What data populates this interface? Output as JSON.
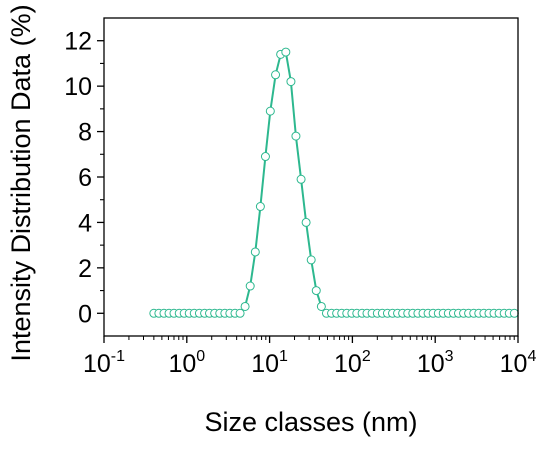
{
  "chart_data": {
    "type": "scatter",
    "title": "",
    "xlabel": "Size classes (nm)",
    "ylabel": "Intensity Distribution Data (%)",
    "x_scale": "log",
    "xlim": [
      0.1,
      10000
    ],
    "ylim": [
      -1,
      13
    ],
    "x_ticks": [
      {
        "base": "10",
        "exp": "-1",
        "value": 0.1
      },
      {
        "base": "10",
        "exp": "0",
        "value": 1
      },
      {
        "base": "10",
        "exp": "1",
        "value": 10
      },
      {
        "base": "10",
        "exp": "2",
        "value": 100
      },
      {
        "base": "10",
        "exp": "3",
        "value": 1000
      },
      {
        "base": "10",
        "exp": "4",
        "value": 10000
      }
    ],
    "y_ticks": [
      "0",
      "2",
      "4",
      "6",
      "8",
      "10",
      "12"
    ],
    "grid": false,
    "legend": "none",
    "series": [
      {
        "marker": "open-circle",
        "line": "solid",
        "color": "#2db88f",
        "points": [
          [
            0.4,
            0.0
          ],
          [
            0.46,
            0.0
          ],
          [
            0.53,
            0.0
          ],
          [
            0.61,
            0.0
          ],
          [
            0.7,
            0.0
          ],
          [
            0.81,
            0.0
          ],
          [
            0.93,
            0.0
          ],
          [
            1.07,
            0.0
          ],
          [
            1.23,
            0.0
          ],
          [
            1.42,
            0.0
          ],
          [
            1.64,
            0.0
          ],
          [
            1.88,
            0.0
          ],
          [
            2.17,
            0.0
          ],
          [
            2.5,
            0.0
          ],
          [
            2.88,
            0.0
          ],
          [
            3.31,
            0.0
          ],
          [
            3.82,
            0.0
          ],
          [
            4.4,
            0.0
          ],
          [
            5.06,
            0.3
          ],
          [
            5.83,
            1.2
          ],
          [
            6.72,
            2.7
          ],
          [
            7.74,
            4.7
          ],
          [
            8.91,
            6.9
          ],
          [
            10.2,
            8.9
          ],
          [
            11.8,
            10.5
          ],
          [
            13.6,
            11.4
          ],
          [
            15.7,
            11.5
          ],
          [
            18.1,
            10.2
          ],
          [
            20.8,
            7.8
          ],
          [
            24.0,
            5.9
          ],
          [
            27.6,
            4.0
          ],
          [
            31.8,
            2.35
          ],
          [
            36.6,
            1.0
          ],
          [
            42.2,
            0.3
          ],
          [
            48.6,
            0.0
          ],
          [
            56.0,
            0.0
          ],
          [
            64.5,
            0.0
          ],
          [
            74.3,
            0.0
          ],
          [
            85.5,
            0.0
          ],
          [
            98.5,
            0.0
          ],
          [
            113,
            0.0
          ],
          [
            131,
            0.0
          ],
          [
            150,
            0.0
          ],
          [
            173,
            0.0
          ],
          [
            200,
            0.0
          ],
          [
            230,
            0.0
          ],
          [
            265,
            0.0
          ],
          [
            305,
            0.0
          ],
          [
            351,
            0.0
          ],
          [
            404,
            0.0
          ],
          [
            466,
            0.0
          ],
          [
            536,
            0.0
          ],
          [
            618,
            0.0
          ],
          [
            712,
            0.0
          ],
          [
            820,
            0.0
          ],
          [
            944,
            0.0
          ],
          [
            1090,
            0.0
          ],
          [
            1250,
            0.0
          ],
          [
            1440,
            0.0
          ],
          [
            1660,
            0.0
          ],
          [
            1910,
            0.0
          ],
          [
            2200,
            0.0
          ],
          [
            2530,
            0.0
          ],
          [
            2920,
            0.0
          ],
          [
            3360,
            0.0
          ],
          [
            3870,
            0.0
          ],
          [
            4460,
            0.0
          ],
          [
            5130,
            0.0
          ],
          [
            5910,
            0.0
          ],
          [
            6810,
            0.0
          ],
          [
            7840,
            0.0
          ],
          [
            9030,
            0.0
          ]
        ]
      }
    ]
  }
}
